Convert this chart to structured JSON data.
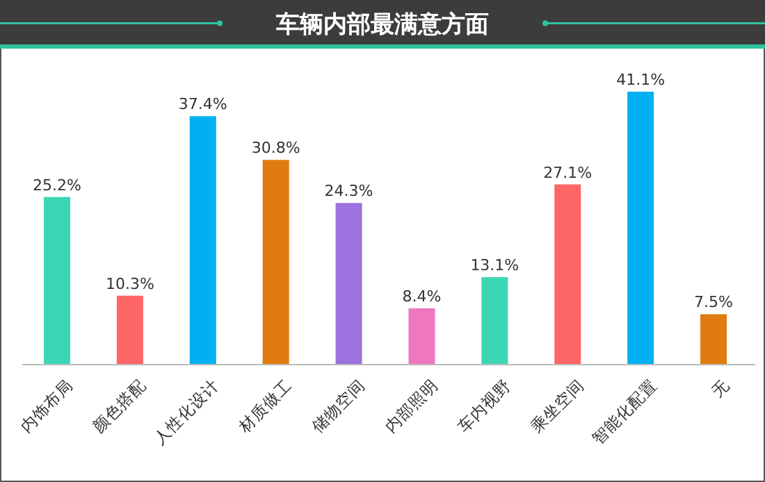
{
  "chart_data": {
    "type": "bar",
    "title": "车辆内部最满意方面",
    "categories": [
      "内饰布局",
      "颜色搭配",
      "人性化设计",
      "材质做工",
      "储物空间",
      "内部照明",
      "车内视野",
      "乘坐空间",
      "智能化配置",
      "无"
    ],
    "values": [
      25.2,
      10.3,
      37.4,
      30.8,
      24.3,
      8.4,
      13.1,
      27.1,
      41.1,
      7.5
    ],
    "value_labels": [
      "25.2%",
      "10.3%",
      "37.4%",
      "30.8%",
      "24.3%",
      "8.4%",
      "13.1%",
      "27.1%",
      "41.1%",
      "7.5%"
    ],
    "colors": [
      "#3dd6b5",
      "#ff6666",
      "#00b0f0",
      "#e07b10",
      "#9b72e0",
      "#ee77c0",
      "#3dd6b5",
      "#ff6666",
      "#00b0f0",
      "#e07b10"
    ]
  }
}
